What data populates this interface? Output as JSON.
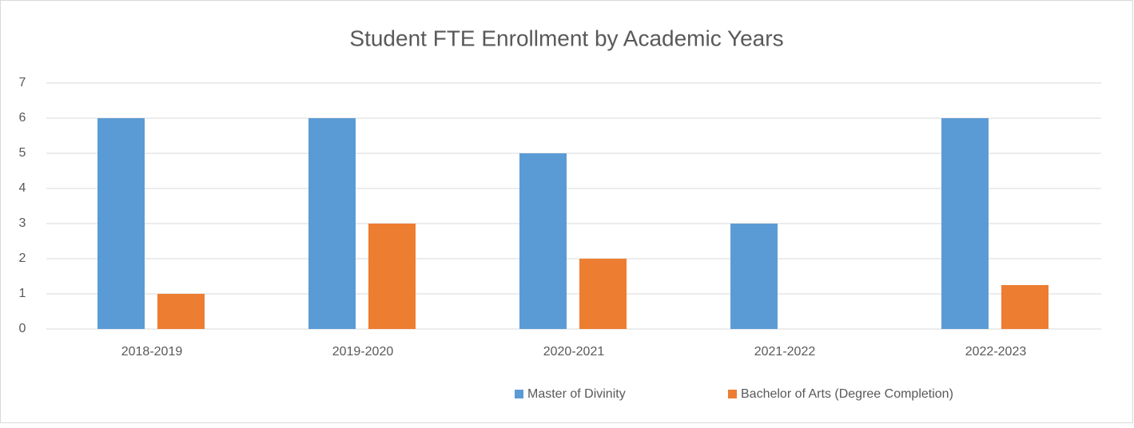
{
  "chart_data": {
    "type": "bar",
    "title": "Student FTE Enrollment by Academic Years",
    "categories": [
      "2018-2019",
      "2019-2020",
      "2020-2021",
      "2021-2022",
      "2022-2023"
    ],
    "series": [
      {
        "name": "Master of Divinity",
        "color": "#5b9bd5",
        "values": [
          6,
          6,
          5,
          3,
          6
        ]
      },
      {
        "name": "Bachelor of Arts (Degree Completion)",
        "color": "#ed7d31",
        "values": [
          1,
          3,
          2,
          0,
          1.25
        ]
      }
    ],
    "ylim": [
      0,
      7
    ],
    "yticks": [
      0,
      1,
      2,
      3,
      4,
      5,
      6,
      7
    ],
    "grid": true,
    "legend": "bottom"
  }
}
